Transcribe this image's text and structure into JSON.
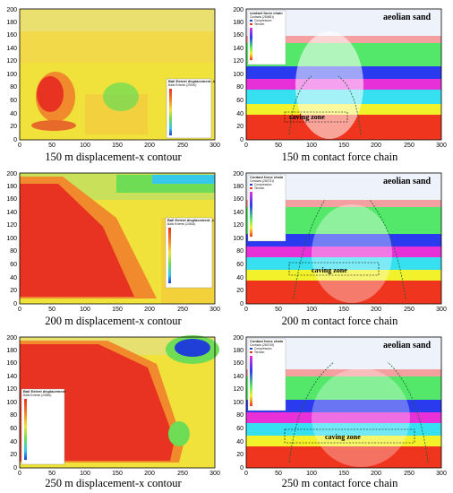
{
  "figure": {
    "panels": [
      {
        "id": "p1",
        "caption": "150 m displacement-x contour",
        "kind": "contour",
        "legend_title": "Ball Extent displacement_x",
        "legend_subtitle": "Balls Extents (29300)",
        "xticks": [
          "0",
          "50",
          "100",
          "150",
          "200",
          "250",
          "300"
        ],
        "yticks": [
          "0",
          "20",
          "40",
          "60",
          "80",
          "100",
          "120",
          "140",
          "160",
          "180",
          "200"
        ]
      },
      {
        "id": "p2",
        "caption": "150 m contact force chain",
        "kind": "forcechain",
        "label_top": "aeolian sand",
        "label_zone": "caving zone",
        "legend_title": "contact force chain",
        "legend_subtitle": "Contacts (284881)",
        "legend_items": [
          "Compression",
          "Tension"
        ],
        "xticks": [
          "0",
          "50",
          "100",
          "150",
          "200",
          "250",
          "300"
        ],
        "yticks": [
          "0",
          "20",
          "40",
          "60",
          "80",
          "100",
          "120",
          "140",
          "160",
          "180",
          "200"
        ]
      },
      {
        "id": "p3",
        "caption": "200 m displacement-x contour",
        "kind": "contour",
        "legend_title": "Ball Extent displacement_x",
        "legend_subtitle": "Balls Extents (24818)",
        "xticks": [
          "0",
          "50",
          "100",
          "150",
          "200",
          "250",
          "300"
        ],
        "yticks": [
          "0",
          "20",
          "40",
          "60",
          "80",
          "100",
          "120",
          "140",
          "160",
          "180",
          "200"
        ]
      },
      {
        "id": "p4",
        "caption": "200 m contact force chain",
        "kind": "forcechain",
        "label_top": "aeolian sand",
        "label_zone": "caving zone",
        "legend_title": "Contact force chain",
        "legend_subtitle": "Contacts (284731)",
        "legend_items": [
          "Compression",
          "Tension"
        ],
        "xticks": [
          "0",
          "50",
          "100",
          "150",
          "200",
          "250",
          "300"
        ],
        "yticks": [
          "0",
          "20",
          "40",
          "60",
          "80",
          "100",
          "120",
          "140",
          "160",
          "180",
          "200"
        ]
      },
      {
        "id": "p5",
        "caption": "250 m displacement-x contour",
        "kind": "contour",
        "legend_title": "Ball Extent displacement",
        "legend_subtitle": "Balls Extents (24684)",
        "xticks": [
          "0",
          "50",
          "100",
          "150",
          "200",
          "250",
          "300"
        ],
        "yticks": [
          "0",
          "20",
          "40",
          "60",
          "80",
          "100",
          "120",
          "140",
          "160",
          "180",
          "200"
        ]
      },
      {
        "id": "p6",
        "caption": "250 m contact force chain",
        "kind": "forcechain",
        "label_top": "aeolian sand",
        "label_zone": "caving zone",
        "legend_title": "Contact force chain",
        "legend_subtitle": "Contacts (284745)",
        "legend_items": [
          "Compression",
          "Tension"
        ],
        "xticks": [
          "0",
          "50",
          "100",
          "150",
          "200",
          "250",
          "300"
        ],
        "yticks": [
          "0",
          "20",
          "40",
          "60",
          "80",
          "100",
          "120",
          "140",
          "160",
          "180",
          "200"
        ]
      }
    ]
  },
  "colors": {
    "contour_yellow": "#f0e23a",
    "contour_red": "#e83322",
    "contour_orange": "#f08a2c",
    "contour_green": "#6fdc55",
    "contour_cyan": "#36c8ea",
    "contour_blue": "#1f3fd6",
    "layer_red": "#f0351e",
    "layer_yellow": "#f2f22a",
    "layer_cyan": "#36e0f0",
    "layer_magenta": "#e830d8",
    "layer_blue": "#2a3aee",
    "layer_green": "#54e86a",
    "layer_pink": "#f5a0a0",
    "layer_white": "#ffffff"
  }
}
